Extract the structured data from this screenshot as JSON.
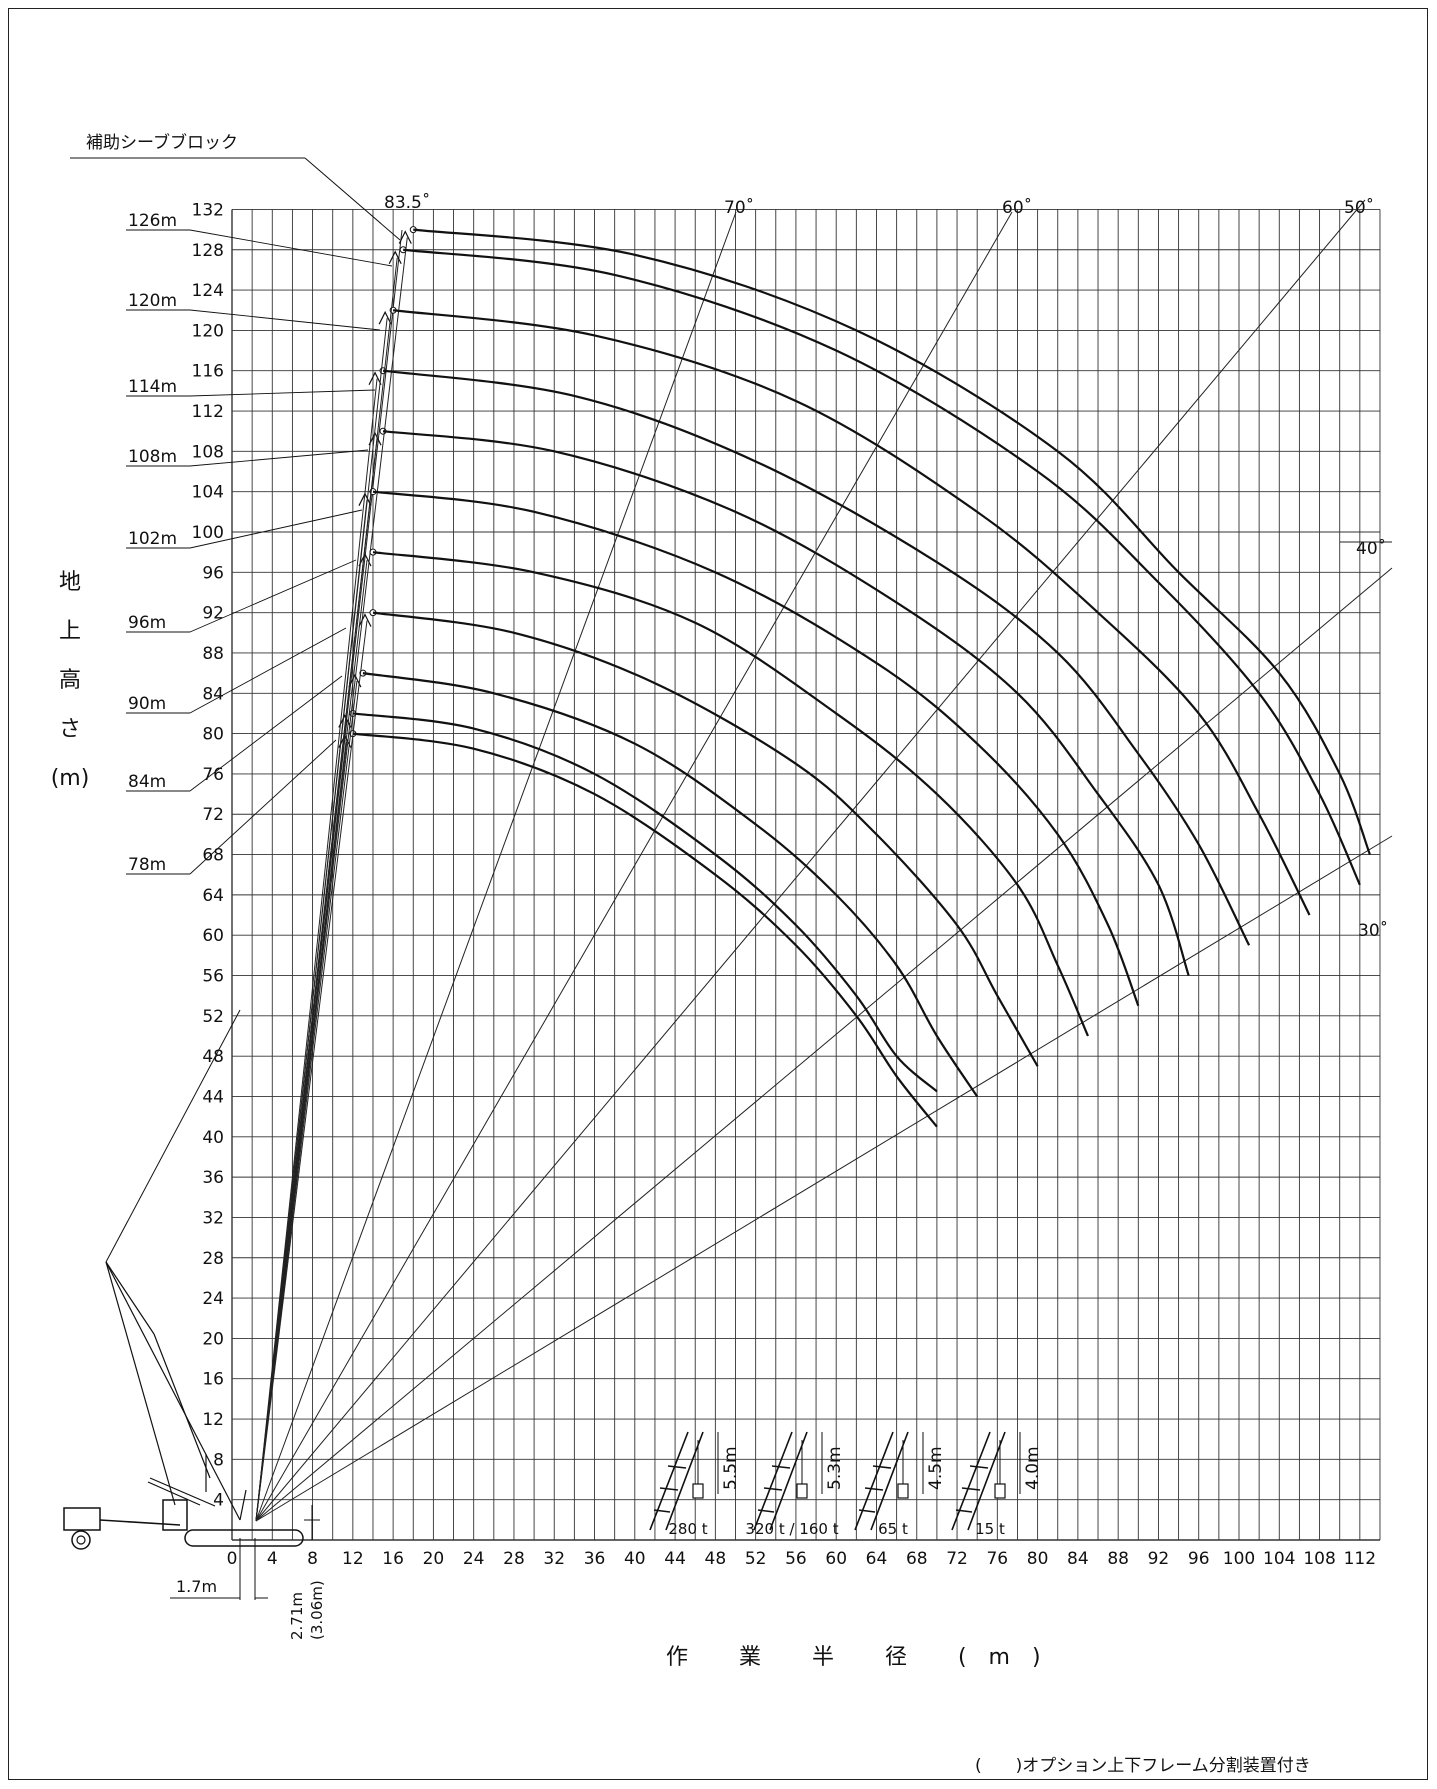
{
  "chart_data": {
    "type": "line",
    "xlabel": "作 業 半 径 (m)",
    "ylabel": [
      "地",
      "上",
      "高",
      "さ",
      "(m)"
    ],
    "xlim": [
      0,
      114
    ],
    "ylim": [
      0,
      132
    ],
    "x_ticks": [
      0,
      4,
      8,
      12,
      16,
      20,
      24,
      28,
      32,
      36,
      40,
      44,
      48,
      52,
      56,
      60,
      64,
      68,
      72,
      76,
      80,
      84,
      88,
      92,
      96,
      100,
      104,
      108,
      112
    ],
    "y_ticks": [
      4,
      8,
      12,
      16,
      20,
      24,
      28,
      32,
      36,
      40,
      44,
      48,
      52,
      56,
      60,
      64,
      68,
      72,
      76,
      80,
      84,
      88,
      92,
      96,
      100,
      104,
      108,
      112,
      116,
      120,
      124,
      128,
      132
    ],
    "grid": true,
    "boom_angle_lines": [
      "83.5˚",
      "70˚",
      "60˚",
      "50˚",
      "40˚",
      "30˚"
    ],
    "boom_length_labels": [
      "126m",
      "120m",
      "114m",
      "108m",
      "102m",
      "96m",
      "90m",
      "84m",
      "78m"
    ],
    "series": [
      {
        "name": "78m",
        "x": [
          12,
          24,
          36,
          48,
          56,
          62,
          66,
          70
        ],
        "y": [
          80,
          78.5,
          74,
          66,
          59,
          52,
          46,
          41
        ]
      },
      {
        "name": "78m",
        "x": [
          12,
          24,
          36,
          48,
          56,
          62,
          66,
          70
        ],
        "y": [
          82,
          80.5,
          76,
          68,
          61,
          54,
          48,
          44.5
        ]
      },
      {
        "name": "84m",
        "x": [
          13,
          26,
          40,
          52,
          60,
          66,
          70,
          74
        ],
        "y": [
          86,
          84,
          79,
          71,
          64,
          57,
          50,
          44
        ]
      },
      {
        "name": "90m",
        "x": [
          14,
          28,
          42,
          56,
          64,
          72,
          76,
          80
        ],
        "y": [
          92,
          90,
          85,
          77,
          70,
          61,
          54,
          47
        ]
      },
      {
        "name": "96m",
        "x": [
          14,
          30,
          46,
          60,
          70,
          78,
          82,
          85
        ],
        "y": [
          98,
          96,
          91,
          82,
          74,
          65,
          57,
          50
        ]
      },
      {
        "name": "102m",
        "x": [
          14,
          30,
          48,
          64,
          74,
          82,
          87,
          90
        ],
        "y": [
          104,
          102,
          96,
          87,
          79,
          70,
          61,
          53
        ]
      },
      {
        "name": "108m",
        "x": [
          15,
          32,
          50,
          66,
          78,
          86,
          92,
          95
        ],
        "y": [
          110,
          108,
          102,
          93,
          84,
          74,
          65,
          56
        ]
      },
      {
        "name": "114m",
        "x": [
          15,
          34,
          52,
          70,
          82,
          90,
          96,
          101
        ],
        "y": [
          116,
          113.5,
          107,
          97,
          88,
          78,
          69,
          59
        ]
      },
      {
        "name": "120m",
        "x": [
          16,
          36,
          56,
          74,
          86,
          96,
          102,
          107
        ],
        "y": [
          122,
          119.5,
          113,
          102,
          92,
          82,
          72,
          62
        ]
      },
      {
        "name": "126m",
        "x": [
          17,
          38,
          60,
          80,
          92,
          102,
          108,
          112
        ],
        "y": [
          128,
          125.5,
          118,
          106,
          95,
          84,
          74,
          65
        ]
      },
      {
        "name": "126m",
        "x": [
          18,
          40,
          62,
          82,
          94,
          104,
          110,
          113
        ],
        "y": [
          130,
          127.5,
          120,
          108,
          96,
          86,
          76,
          68
        ]
      }
    ]
  },
  "annotations": {
    "callout": "補助シーブブロック",
    "top_angle": "83.5˚",
    "dim_17": "1.7m",
    "dim_271": "2.71m",
    "dim_306": "(3.06m)",
    "footnote": "(　　)オプション上下フレーム分割装置付き"
  },
  "hook_blocks": [
    {
      "height": "5.5m",
      "capacity": "280 t"
    },
    {
      "height": "5.3m",
      "capacity": "320 t / 160 t"
    },
    {
      "height": "4.5m",
      "capacity": "65 t"
    },
    {
      "height": "4.0m",
      "capacity": "15 t"
    }
  ]
}
